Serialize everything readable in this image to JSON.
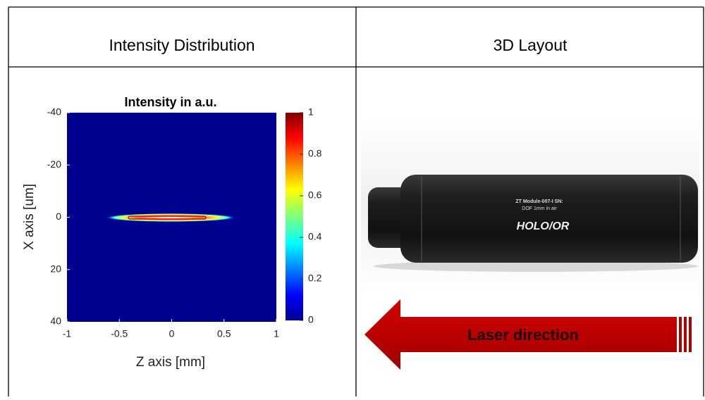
{
  "table": {
    "headers": [
      "Intensity Distribution",
      "3D Layout"
    ]
  },
  "chart_data": {
    "type": "heatmap",
    "title": "Intensity in a.u.",
    "xlabel": "Z axis [mm]",
    "ylabel": "X axis [um]",
    "xlim": [
      -1,
      1
    ],
    "xticks": [
      -1,
      -0.5,
      0,
      0.5,
      1
    ],
    "ylim": [
      -40,
      40
    ],
    "yticks": [
      -40,
      -20,
      0,
      20,
      40
    ],
    "y_inverted": true,
    "colorbar": {
      "lim": [
        0,
        1
      ],
      "ticks": [
        0,
        0.2,
        0.4,
        0.6,
        0.8,
        1
      ],
      "colormap": "jet"
    }
  },
  "photo": {
    "label_lines": [
      "ZT Module-007-I SN:",
      "DOF 1mm in air"
    ],
    "logo": "HOLO/OR",
    "arrow_text": "Laser direction"
  }
}
